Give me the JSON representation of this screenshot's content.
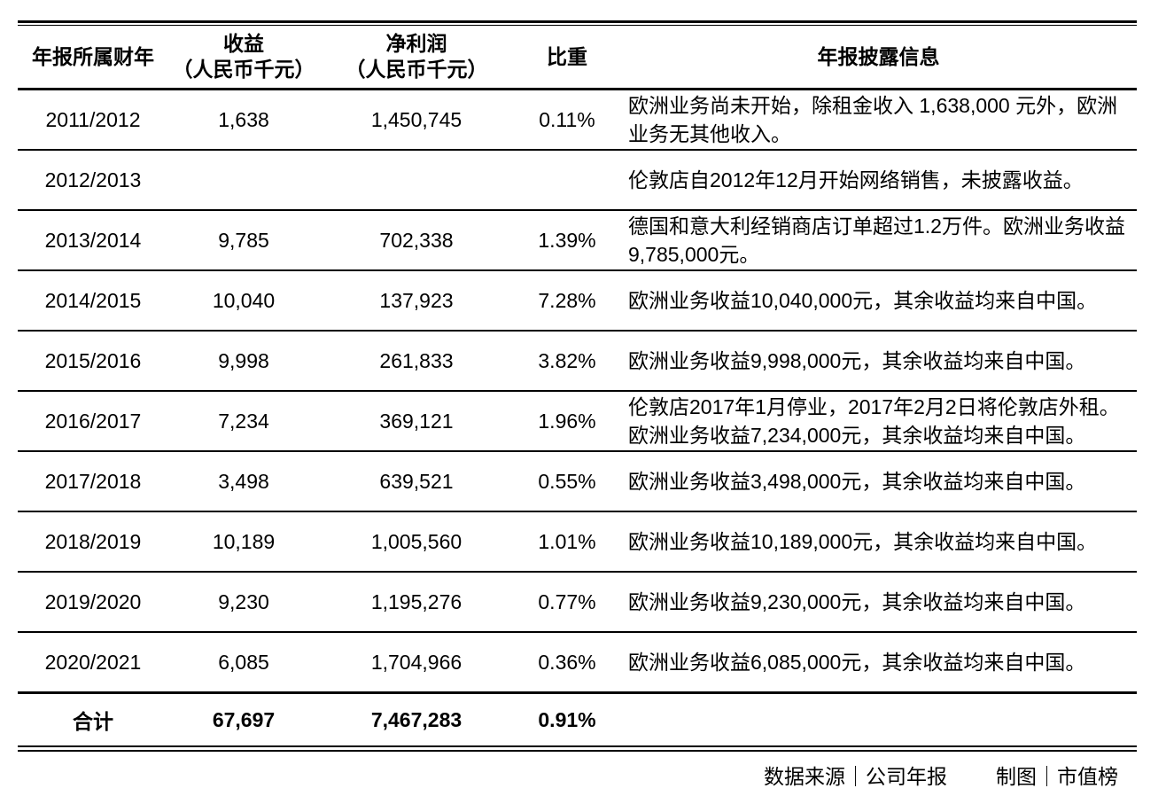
{
  "colors": {
    "background": "#ffffff",
    "text": "#000000",
    "rule": "#000000"
  },
  "chart_data": {
    "type": "table",
    "columns": [
      {
        "label": "年报所属财年",
        "sub": ""
      },
      {
        "label": "收益",
        "sub": "（人民币千元）"
      },
      {
        "label": "净利润",
        "sub": "（人民币千元）"
      },
      {
        "label": "比重",
        "sub": ""
      },
      {
        "label": "年报披露信息",
        "sub": ""
      }
    ],
    "rows": [
      {
        "year": "2011/2012",
        "revenue": "1,638",
        "profit": "1,450,745",
        "share": "0.11%",
        "note": "欧洲业务尚未开始，除租金收入 1,638,000 元外，欧洲业务无其他收入。"
      },
      {
        "year": "2012/2013",
        "revenue": "",
        "profit": "",
        "share": "",
        "note": "伦敦店自2012年12月开始网络销售，未披露收益。"
      },
      {
        "year": "2013/2014",
        "revenue": "9,785",
        "profit": "702,338",
        "share": "1.39%",
        "note": "德国和意大利经销商店订单超过1.2万件。欧洲业务收益9,785,000元。"
      },
      {
        "year": "2014/2015",
        "revenue": "10,040",
        "profit": "137,923",
        "share": "7.28%",
        "note": "欧洲业务收益10,040,000元，其余收益均来自中国。"
      },
      {
        "year": "2015/2016",
        "revenue": "9,998",
        "profit": "261,833",
        "share": "3.82%",
        "note": "欧洲业务收益9,998,000元，其余收益均来自中国。"
      },
      {
        "year": "2016/2017",
        "revenue": "7,234",
        "profit": "369,121",
        "share": "1.96%",
        "note": "伦敦店2017年1月停业，2017年2月2日将伦敦店外租。欧洲业务收益7,234,000元，其余收益均来自中国。"
      },
      {
        "year": "2017/2018",
        "revenue": "3,498",
        "profit": "639,521",
        "share": "0.55%",
        "note": "欧洲业务收益3,498,000元，其余收益均来自中国。"
      },
      {
        "year": "2018/2019",
        "revenue": "10,189",
        "profit": "1,005,560",
        "share": "1.01%",
        "note": "欧洲业务收益10,189,000元，其余收益均来自中国。"
      },
      {
        "year": "2019/2020",
        "revenue": "9,230",
        "profit": "1,195,276",
        "share": "0.77%",
        "note": "欧洲业务收益9,230,000元，其余收益均来自中国。"
      },
      {
        "year": "2020/2021",
        "revenue": "6,085",
        "profit": "1,704,966",
        "share": "0.36%",
        "note": "欧洲业务收益6,085,000元，其余收益均来自中国。"
      }
    ],
    "total": {
      "year": "合计",
      "revenue": "67,697",
      "profit": "7,467,283",
      "share": "0.91%",
      "note": ""
    }
  },
  "footer": {
    "source": "数据来源｜公司年报",
    "credit": "制图｜市值榜"
  }
}
